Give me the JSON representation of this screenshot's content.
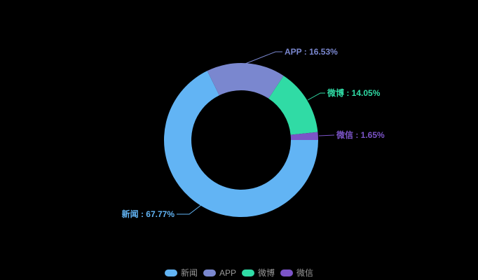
{
  "chart_data": {
    "type": "pie",
    "subtype": "donut",
    "series": [
      {
        "name": "新闻",
        "value": 67.77,
        "color": "#62B4F4"
      },
      {
        "name": "APP",
        "value": 16.53,
        "color": "#7A87CF"
      },
      {
        "name": "微博",
        "value": 14.05,
        "color": "#30DBA5"
      },
      {
        "name": "微信",
        "value": 1.65,
        "color": "#7C54C8"
      }
    ],
    "labels": [
      "新闻 : 67.77%",
      "APP : 16.53%",
      "微博 : 14.05%",
      "微信 : 1.65%"
    ],
    "label_format": "{name} : {value}%",
    "legend_labels": [
      "新闻",
      "APP",
      "微博",
      "微信"
    ],
    "legend_position": "bottom-center",
    "start_angle_deg": 0,
    "clockwise": true,
    "background_color": "#000000",
    "legend_text_color": "#999999"
  }
}
